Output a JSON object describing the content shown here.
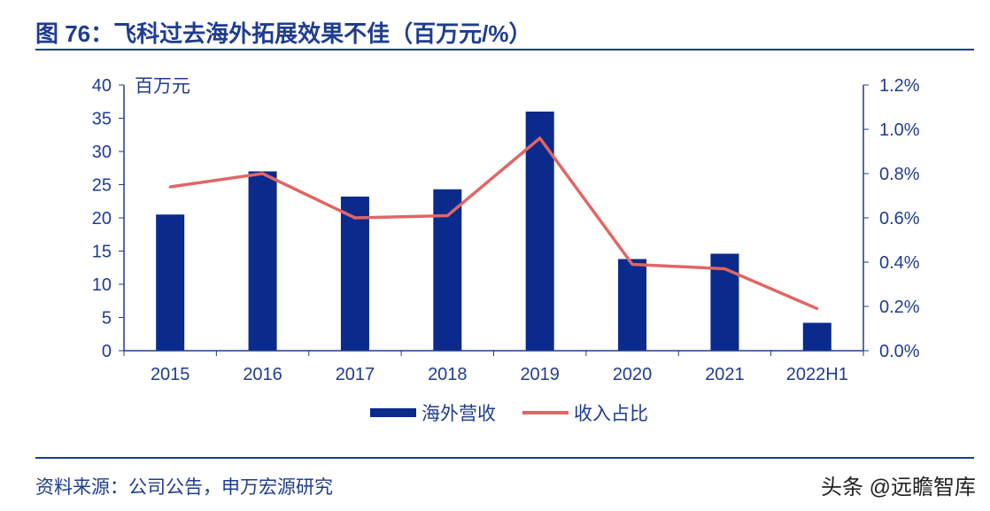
{
  "title": "图 76：飞科过去海外拓展效果不佳（百万元/%）",
  "source": "资料来源：公司公告，申万宏源研究",
  "watermark": "头条 @远瞻智库",
  "colors": {
    "bar": "#0a2a8c",
    "line": "#e06666",
    "axis": "#1f3c8f",
    "text": "#1f3c8f"
  },
  "chart_data": {
    "type": "bar+line",
    "categories": [
      "2015",
      "2016",
      "2017",
      "2018",
      "2019",
      "2020",
      "2021",
      "2022H1"
    ],
    "series": [
      {
        "name": "海外营收",
        "type": "bar",
        "axis": "left",
        "values": [
          20.5,
          27.0,
          23.2,
          24.3,
          36.0,
          13.8,
          14.6,
          4.2
        ]
      },
      {
        "name": "收入占比",
        "type": "line",
        "axis": "right",
        "values": [
          0.74,
          0.8,
          0.6,
          0.61,
          0.96,
          0.39,
          0.37,
          0.19
        ]
      }
    ],
    "left_axis": {
      "unit_label": "百万元",
      "ylim": [
        0,
        40
      ],
      "ticks": [
        "0",
        "5",
        "10",
        "15",
        "20",
        "25",
        "30",
        "35",
        "40"
      ]
    },
    "right_axis": {
      "ylim": [
        0,
        1.2
      ],
      "ticks": [
        "0.0%",
        "0.2%",
        "0.4%",
        "0.6%",
        "0.8%",
        "1.0%",
        "1.2%"
      ]
    },
    "legend": [
      "海外营收",
      "收入占比"
    ],
    "legend_position": "bottom"
  }
}
